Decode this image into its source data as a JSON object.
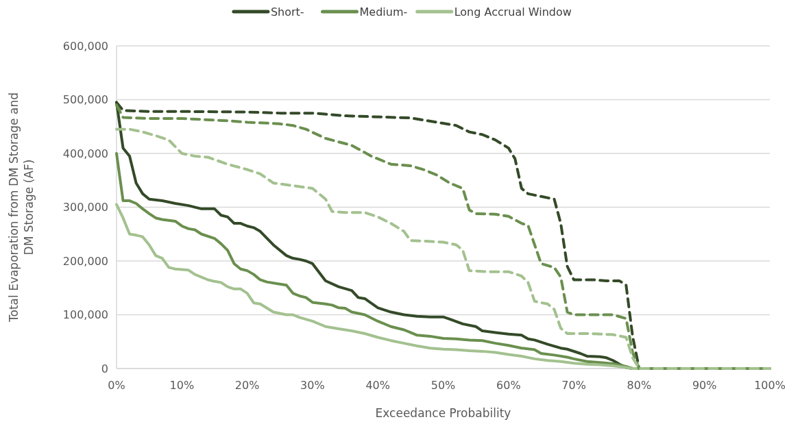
{
  "chart_data": {
    "type": "line",
    "xlabel": "Exceedance Probability",
    "ylabel": "Total Evaporation from DM Storage and DM Storage (AF)",
    "xlim": [
      0,
      100
    ],
    "ylim": [
      0,
      600000
    ],
    "xticks": [
      {
        "value": 0,
        "label": "0%"
      },
      {
        "value": 10,
        "label": "10%"
      },
      {
        "value": 20,
        "label": "20%"
      },
      {
        "value": 30,
        "label": "30%"
      },
      {
        "value": 40,
        "label": "40%"
      },
      {
        "value": 50,
        "label": "50%"
      },
      {
        "value": 60,
        "label": "60%"
      },
      {
        "value": 70,
        "label": "70%"
      },
      {
        "value": 80,
        "label": "80%"
      },
      {
        "value": 90,
        "label": "90%"
      },
      {
        "value": 100,
        "label": "100%"
      }
    ],
    "yticks": [
      {
        "value": 0,
        "label": "0"
      },
      {
        "value": 100000,
        "label": "100,000"
      },
      {
        "value": 200000,
        "label": "200,000"
      },
      {
        "value": 300000,
        "label": "300,000"
      },
      {
        "value": 400000,
        "label": "400,000"
      },
      {
        "value": 500000,
        "label": "500,000"
      },
      {
        "value": 600000,
        "label": "600,000"
      }
    ],
    "grid": "y",
    "legend": "top",
    "marker": "none",
    "series": [
      {
        "name": "Short-",
        "color": "#344a28",
        "line_style": "solid",
        "x": [
          0,
          1,
          2,
          3,
          4,
          5,
          7,
          9,
          11,
          13,
          15,
          16,
          17,
          18,
          19,
          20,
          21,
          22,
          24,
          26,
          27,
          28,
          29,
          30,
          32,
          34,
          36,
          37,
          38,
          40,
          42,
          44,
          46,
          48,
          50,
          51,
          53,
          55,
          56,
          58,
          60,
          62,
          63,
          64,
          66,
          68,
          69,
          71,
          72,
          74,
          75,
          76,
          77,
          78,
          79,
          100
        ],
        "values": [
          495000,
          410000,
          395000,
          345000,
          325000,
          315000,
          312000,
          307000,
          303000,
          297000,
          297000,
          285000,
          282000,
          270000,
          270000,
          265000,
          262000,
          255000,
          230000,
          210000,
          205000,
          203000,
          200000,
          195000,
          163000,
          152000,
          145000,
          132000,
          130000,
          113000,
          105000,
          100000,
          97000,
          96000,
          96000,
          92000,
          83000,
          78000,
          70000,
          67000,
          64000,
          62000,
          55000,
          53000,
          45000,
          38000,
          36000,
          28000,
          23000,
          22000,
          20000,
          15000,
          8000,
          2000,
          0,
          0
        ]
      },
      {
        "name": "Medium-",
        "color": "#6a8f4e",
        "line_style": "solid",
        "x": [
          0,
          1,
          2,
          3,
          4,
          5,
          6,
          7,
          9,
          10,
          11,
          12,
          13,
          15,
          16,
          17,
          18,
          19,
          20,
          21,
          22,
          23,
          25,
          26,
          27,
          28,
          29,
          30,
          32,
          33,
          34,
          35,
          36,
          38,
          40,
          42,
          44,
          45,
          46,
          48,
          50,
          52,
          54,
          56,
          58,
          60,
          62,
          64,
          65,
          67,
          69,
          70,
          72,
          74,
          76,
          78,
          79,
          100
        ],
        "values": [
          400000,
          312000,
          312000,
          307000,
          297000,
          288000,
          280000,
          277000,
          274000,
          265000,
          260000,
          258000,
          250000,
          242000,
          232000,
          220000,
          195000,
          185000,
          182000,
          175000,
          165000,
          161000,
          157000,
          155000,
          140000,
          135000,
          132000,
          123000,
          120000,
          118000,
          113000,
          112000,
          105000,
          100000,
          88000,
          78000,
          72000,
          67000,
          62000,
          60000,
          56000,
          55000,
          53000,
          52000,
          47000,
          43000,
          38000,
          35000,
          28000,
          25000,
          21000,
          18000,
          13000,
          11000,
          9000,
          4000,
          0,
          0
        ]
      },
      {
        "name": "Long Accrual Window",
        "color": "#a3c18f",
        "line_style": "solid",
        "x": [
          0,
          1,
          2,
          3,
          4,
          5,
          6,
          7,
          8,
          9,
          11,
          12,
          14,
          15,
          16,
          17,
          18,
          19,
          20,
          21,
          22,
          24,
          26,
          27,
          28,
          30,
          32,
          34,
          36,
          38,
          40,
          42,
          44,
          46,
          48,
          50,
          52,
          54,
          56,
          58,
          60,
          62,
          64,
          66,
          68,
          70,
          72,
          74,
          76,
          78,
          79,
          100
        ],
        "values": [
          305000,
          280000,
          250000,
          248000,
          245000,
          230000,
          210000,
          205000,
          188000,
          185000,
          183000,
          175000,
          165000,
          162000,
          160000,
          152000,
          148000,
          148000,
          140000,
          122000,
          120000,
          105000,
          100000,
          100000,
          95000,
          88000,
          78000,
          74000,
          70000,
          65000,
          58000,
          52000,
          47000,
          42000,
          38000,
          36000,
          35000,
          33000,
          32000,
          30000,
          26000,
          23000,
          18000,
          15000,
          13000,
          10000,
          8000,
          7000,
          5000,
          2000,
          0,
          0
        ]
      },
      {
        "color": "#344a28",
        "line_style": "dashed",
        "x": [
          0,
          1,
          5,
          10,
          20,
          25,
          30,
          35,
          45,
          49,
          52,
          54,
          56,
          58,
          60,
          61,
          62,
          63,
          65,
          67,
          68,
          69,
          70,
          73,
          75,
          77,
          78,
          79,
          80,
          100
        ],
        "values": [
          495000,
          480000,
          478000,
          478000,
          477000,
          475000,
          475000,
          470000,
          466000,
          458000,
          452000,
          440000,
          435000,
          425000,
          410000,
          390000,
          335000,
          325000,
          320000,
          315000,
          270000,
          190000,
          165000,
          165000,
          163000,
          163000,
          155000,
          60000,
          0,
          0
        ]
      },
      {
        "color": "#6a8f4e",
        "line_style": "dashed",
        "x": [
          0,
          1,
          5,
          10,
          15,
          18,
          20,
          22,
          25,
          27,
          29,
          32,
          36,
          39,
          42,
          45,
          47,
          49,
          51,
          53,
          54,
          55,
          58,
          60,
          62,
          63,
          64,
          65,
          67,
          68,
          69,
          70,
          73,
          76,
          78,
          79,
          80,
          100
        ],
        "values": [
          490000,
          467000,
          465000,
          465000,
          462000,
          460000,
          458000,
          457000,
          455000,
          452000,
          445000,
          428000,
          415000,
          395000,
          380000,
          377000,
          370000,
          360000,
          345000,
          335000,
          295000,
          288000,
          287000,
          283000,
          270000,
          266000,
          230000,
          195000,
          188000,
          170000,
          105000,
          100000,
          100000,
          100000,
          93000,
          30000,
          0,
          0
        ]
      },
      {
        "color": "#a3c18f",
        "line_style": "dashed",
        "x": [
          0,
          2,
          4,
          6,
          8,
          10,
          12,
          14,
          17,
          20,
          22,
          24,
          27,
          30,
          32,
          33,
          35,
          38,
          40,
          42,
          44,
          45,
          47,
          50,
          52,
          53,
          54,
          57,
          60,
          62,
          63,
          64,
          66,
          67,
          68,
          69,
          72,
          76,
          78,
          79,
          80,
          100
        ],
        "values": [
          445000,
          445000,
          440000,
          433000,
          425000,
          400000,
          395000,
          393000,
          380000,
          370000,
          362000,
          345000,
          340000,
          335000,
          315000,
          292000,
          290000,
          290000,
          282000,
          270000,
          255000,
          238000,
          237000,
          235000,
          230000,
          220000,
          182000,
          180000,
          180000,
          172000,
          160000,
          125000,
          120000,
          110000,
          75000,
          65000,
          65000,
          63000,
          58000,
          20000,
          0,
          0
        ]
      }
    ]
  }
}
